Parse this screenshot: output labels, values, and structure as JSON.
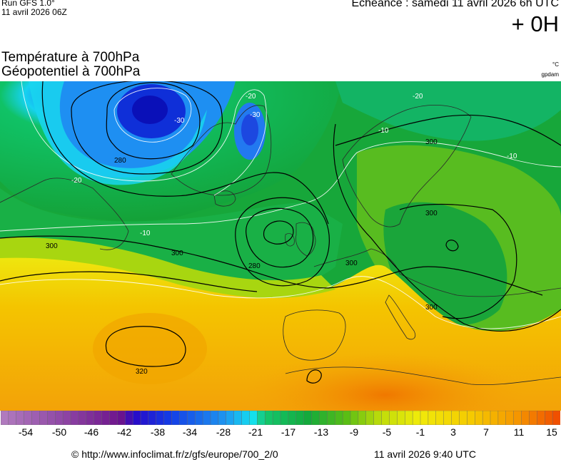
{
  "header": {
    "run_line1": "Run GFS 1.0°",
    "run_line2": "11 avril 2026 06Z",
    "echeance": "Echéance : samedi 11 avril 2026 6h UTC",
    "hour": "+ 0H"
  },
  "titles": {
    "line1": "Température à 700hPa",
    "line2": "Géopotentiel à 700hPa"
  },
  "units": {
    "temperature": "°C",
    "geopotential": "gpdam"
  },
  "map": {
    "contour_labels": [
      "280",
      "280",
      "300",
      "300",
      "300",
      "300",
      "300",
      "300",
      "320",
      "-30",
      "-30",
      "-20",
      "-20",
      "-20",
      "-10",
      "-10",
      "-10"
    ]
  },
  "colorbar": {
    "ticks": [
      "-54",
      "-50",
      "-46",
      "-42",
      "-38",
      "-34",
      "-28",
      "-21",
      "-17",
      "-13",
      "-9",
      "-5",
      "-1",
      "3",
      "7",
      "11",
      "15"
    ]
  },
  "footer": {
    "copyright": "© http://www.infoclimat.fr/z/gfs/europe/700_2/0",
    "generated": "11 avril 2026  9:40 UTC"
  }
}
